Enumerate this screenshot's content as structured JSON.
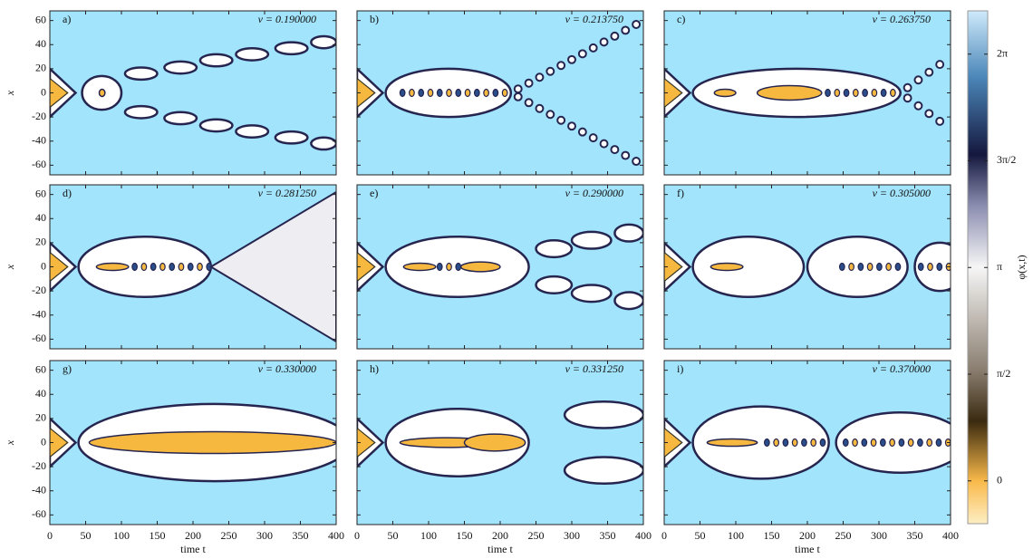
{
  "chart_data": [
    {
      "type": "heatmap",
      "panel": "a)",
      "annotation": "v = 0.190000",
      "xlim": [
        0,
        400
      ],
      "ylim": [
        -68,
        68
      ],
      "ylabel": "x",
      "yticks": [
        -60,
        -40,
        -20,
        0,
        20,
        40,
        60
      ]
    },
    {
      "type": "heatmap",
      "panel": "b)",
      "annotation": "v = 0.213750",
      "xlim": [
        0,
        400
      ],
      "ylim": [
        -68,
        68
      ]
    },
    {
      "type": "heatmap",
      "panel": "c)",
      "annotation": "v = 0.263750",
      "xlim": [
        0,
        400
      ],
      "ylim": [
        -68,
        68
      ]
    },
    {
      "type": "heatmap",
      "panel": "d)",
      "annotation": "v = 0.281250",
      "xlim": [
        0,
        400
      ],
      "ylim": [
        -68,
        68
      ],
      "ylabel": "x",
      "yticks": [
        -60,
        -40,
        -20,
        0,
        20,
        40,
        60
      ]
    },
    {
      "type": "heatmap",
      "panel": "e)",
      "annotation": "v = 0.290000",
      "xlim": [
        0,
        400
      ],
      "ylim": [
        -68,
        68
      ]
    },
    {
      "type": "heatmap",
      "panel": "f)",
      "annotation": "v = 0.305000",
      "xlim": [
        0,
        400
      ],
      "ylim": [
        -68,
        68
      ]
    },
    {
      "type": "heatmap",
      "panel": "g)",
      "annotation": "v = 0.330000",
      "xlim": [
        0,
        400
      ],
      "ylim": [
        -68,
        68
      ],
      "ylabel": "x",
      "yticks": [
        -60,
        -40,
        -20,
        0,
        20,
        40,
        60
      ],
      "xlabel": "time t",
      "xticks": [
        0,
        50,
        100,
        150,
        200,
        250,
        300,
        350,
        400
      ]
    },
    {
      "type": "heatmap",
      "panel": "h)",
      "annotation": "v = 0.331250",
      "xlim": [
        0,
        400
      ],
      "ylim": [
        -68,
        68
      ],
      "xlabel": "time t",
      "xticks": [
        0,
        50,
        100,
        150,
        200,
        250,
        300,
        350,
        400
      ]
    },
    {
      "type": "heatmap",
      "panel": "i)",
      "annotation": "v = 0.370000",
      "xlim": [
        0,
        400
      ],
      "ylim": [
        -68,
        68
      ],
      "xlabel": "time t",
      "xticks": [
        0,
        50,
        100,
        150,
        200,
        250,
        300,
        350,
        400
      ]
    },
    {
      "type": "colorbar",
      "label": "φ(x,t)",
      "ylim": [
        -0.63,
        6.92
      ],
      "yticks": [
        {
          "value": 0,
          "label": "0"
        },
        {
          "value": 1.5708,
          "label": "π/2"
        },
        {
          "value": 3.1416,
          "label": "π"
        },
        {
          "value": 4.7124,
          "label": "3π/2"
        },
        {
          "value": 6.2832,
          "label": "2π"
        }
      ]
    }
  ]
}
